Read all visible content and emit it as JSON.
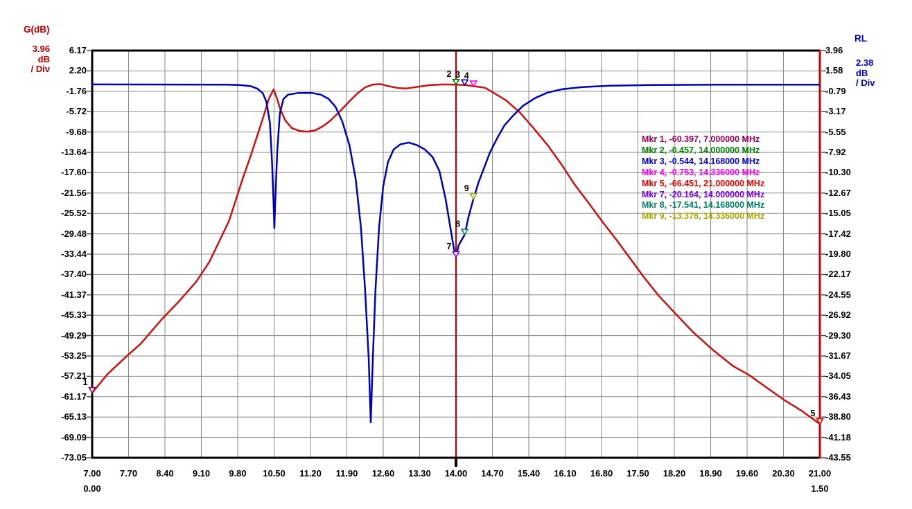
{
  "left_axis_header": {
    "label": "G(dB)",
    "scale_value": "3.96",
    "scale_unit": "dB",
    "scale_per": "/ Div",
    "color": "#c00000"
  },
  "right_axis_header": {
    "label": "RL",
    "scale_value": "2.38",
    "scale_unit": "dB",
    "scale_per": "/ Div",
    "color": "#0000cc"
  },
  "chart_data": {
    "type": "line",
    "title": "Filter gain and return loss vs frequency",
    "x_axis": {
      "unit": "MHz",
      "min": 7.0,
      "max": 21.0,
      "tick_labels": [
        "7.00",
        "7.70",
        "8.40",
        "9.10",
        "9.80",
        "10.50",
        "11.20",
        "11.90",
        "12.60",
        "13.30",
        "14.00",
        "14.70",
        "15.40",
        "16.10",
        "16.80",
        "17.50",
        "18.20",
        "18.90",
        "19.60",
        "20.30",
        "21.00"
      ],
      "secondary_left_label": "0.00",
      "secondary_right_label": "1.50"
    },
    "left_axis": {
      "name": "G(dB)",
      "top": 6.17,
      "per_div": 3.96,
      "divisions": 20,
      "tick_labels": [
        "6.17",
        "2.20",
        "-1.76",
        "-5.72",
        "-9.68",
        "-13.64",
        "-17.60",
        "-21.56",
        "-25.52",
        "-29.48",
        "-33.44",
        "-37.40",
        "-41.37",
        "-45.33",
        "-49.29",
        "-53.25",
        "-57.21",
        "-61.17",
        "-65.13",
        "-69.09",
        "-73.05"
      ]
    },
    "right_axis": {
      "name": "RL",
      "top": 3.96,
      "per_div": 2.38,
      "divisions": 20,
      "tick_labels": [
        "3.96",
        "1.58",
        "-0.79",
        "-3.17",
        "-5.55",
        "-7.92",
        "-10.30",
        "-12.67",
        "-15.05",
        "-17.42",
        "-19.80",
        "-22.17",
        "-24.55",
        "-26.92",
        "-29.30",
        "-31.67",
        "-34.05",
        "-36.43",
        "-38.80",
        "-41.18",
        "-43.55"
      ]
    },
    "grid_color": "#868686",
    "border_color": "#000000",
    "right_border_color": "#c00000",
    "tick_color": "#444444",
    "marker_line": {
      "freq_mhz": 14.0,
      "color": "#c00000"
    },
    "series": [
      {
        "name": "gain",
        "axis": "left",
        "color": "#cc1111",
        "points": [
          [
            7.0,
            -60.4
          ],
          [
            7.3,
            -56.7
          ],
          [
            7.67,
            -53.2
          ],
          [
            7.93,
            -50.9
          ],
          [
            8.33,
            -46.2
          ],
          [
            8.69,
            -42.4
          ],
          [
            9.0,
            -38.8
          ],
          [
            9.25,
            -35.0
          ],
          [
            9.45,
            -30.8
          ],
          [
            9.63,
            -27.0
          ],
          [
            9.76,
            -23.0
          ],
          [
            9.89,
            -18.9
          ],
          [
            10.03,
            -14.9
          ],
          [
            10.16,
            -10.9
          ],
          [
            10.29,
            -6.85
          ],
          [
            10.4,
            -3.2
          ],
          [
            10.49,
            -1.4
          ],
          [
            10.55,
            -3.0
          ],
          [
            10.62,
            -5.3
          ],
          [
            10.72,
            -7.5
          ],
          [
            10.84,
            -8.9
          ],
          [
            11.0,
            -9.5
          ],
          [
            11.15,
            -9.6
          ],
          [
            11.3,
            -9.3
          ],
          [
            11.45,
            -8.5
          ],
          [
            11.6,
            -7.3
          ],
          [
            11.78,
            -5.5
          ],
          [
            11.95,
            -3.7
          ],
          [
            12.1,
            -2.2
          ],
          [
            12.25,
            -1.0
          ],
          [
            12.4,
            -0.45
          ],
          [
            12.55,
            -0.35
          ],
          [
            12.7,
            -0.75
          ],
          [
            12.9,
            -1.15
          ],
          [
            13.05,
            -1.2
          ],
          [
            13.25,
            -0.9
          ],
          [
            13.5,
            -0.55
          ],
          [
            13.75,
            -0.42
          ],
          [
            14.0,
            -0.457
          ],
          [
            14.168,
            -0.544
          ],
          [
            14.336,
            -0.753
          ],
          [
            14.56,
            -1.08
          ],
          [
            14.7,
            -1.9
          ],
          [
            14.96,
            -3.5
          ],
          [
            15.23,
            -5.9
          ],
          [
            15.49,
            -8.9
          ],
          [
            15.76,
            -12.2
          ],
          [
            16.03,
            -16.0
          ],
          [
            16.29,
            -20.0
          ],
          [
            16.56,
            -23.6
          ],
          [
            16.83,
            -27.3
          ],
          [
            17.09,
            -30.7
          ],
          [
            17.36,
            -34.4
          ],
          [
            17.63,
            -38.1
          ],
          [
            17.89,
            -41.4
          ],
          [
            18.23,
            -45.1
          ],
          [
            18.56,
            -48.6
          ],
          [
            18.96,
            -52.2
          ],
          [
            19.33,
            -55.2
          ],
          [
            19.63,
            -56.9
          ],
          [
            19.99,
            -59.5
          ],
          [
            20.33,
            -61.9
          ],
          [
            20.65,
            -63.9
          ],
          [
            21.0,
            -66.451
          ]
        ]
      },
      {
        "name": "return_loss",
        "axis": "right",
        "color": "#0000b4",
        "points": [
          [
            7.0,
            0.0
          ],
          [
            9.6,
            -0.02
          ],
          [
            9.85,
            -0.08
          ],
          [
            10.05,
            -0.2
          ],
          [
            10.18,
            -0.5
          ],
          [
            10.28,
            -1.0
          ],
          [
            10.35,
            -2.0
          ],
          [
            10.42,
            -4.5
          ],
          [
            10.46,
            -9.0
          ],
          [
            10.49,
            -14.0
          ],
          [
            10.505,
            -16.8
          ],
          [
            10.52,
            -14.0
          ],
          [
            10.56,
            -7.9
          ],
          [
            10.61,
            -3.4
          ],
          [
            10.68,
            -1.7
          ],
          [
            10.77,
            -1.2
          ],
          [
            10.96,
            -1.0
          ],
          [
            11.23,
            -1.0
          ],
          [
            11.4,
            -1.2
          ],
          [
            11.55,
            -1.7
          ],
          [
            11.68,
            -2.6
          ],
          [
            11.81,
            -4.3
          ],
          [
            11.95,
            -7.1
          ],
          [
            12.07,
            -11.1
          ],
          [
            12.17,
            -16.7
          ],
          [
            12.25,
            -24.0
          ],
          [
            12.32,
            -32.0
          ],
          [
            12.36,
            -39.5
          ],
          [
            12.4,
            -32.0
          ],
          [
            12.45,
            -24.0
          ],
          [
            12.52,
            -16.7
          ],
          [
            12.6,
            -11.9
          ],
          [
            12.69,
            -9.1
          ],
          [
            12.8,
            -7.6
          ],
          [
            12.93,
            -7.0
          ],
          [
            13.09,
            -6.8
          ],
          [
            13.25,
            -7.1
          ],
          [
            13.4,
            -7.6
          ],
          [
            13.55,
            -8.5
          ],
          [
            13.68,
            -10.1
          ],
          [
            13.8,
            -13.4
          ],
          [
            13.89,
            -16.7
          ],
          [
            13.96,
            -19.2
          ],
          [
            14.0,
            -20.164
          ],
          [
            14.05,
            -18.8
          ],
          [
            14.168,
            -17.541
          ],
          [
            14.24,
            -15.5
          ],
          [
            14.336,
            -13.378
          ],
          [
            14.43,
            -11.5
          ],
          [
            14.53,
            -9.9
          ],
          [
            14.65,
            -8.0
          ],
          [
            14.79,
            -6.3
          ],
          [
            14.93,
            -4.8
          ],
          [
            15.09,
            -3.7
          ],
          [
            15.29,
            -2.5
          ],
          [
            15.52,
            -1.6
          ],
          [
            15.76,
            -0.95
          ],
          [
            16.05,
            -0.55
          ],
          [
            16.43,
            -0.31
          ],
          [
            16.96,
            -0.15
          ],
          [
            17.76,
            -0.07
          ],
          [
            19.0,
            -0.03
          ],
          [
            21.0,
            -0.02
          ]
        ]
      }
    ],
    "markers": [
      {
        "id": "1",
        "value": -60.397,
        "freq_mhz": 7.0,
        "axis": "left",
        "color": "#a00050"
      },
      {
        "id": "2",
        "value": -0.457,
        "freq_mhz": 14.0,
        "axis": "left",
        "color": "#008000"
      },
      {
        "id": "3",
        "value": -0.544,
        "freq_mhz": 14.168,
        "axis": "left",
        "color": "#0000ee"
      },
      {
        "id": "4",
        "value": -0.753,
        "freq_mhz": 14.336,
        "axis": "left",
        "color": "#ff00ff"
      },
      {
        "id": "5",
        "value": -66.451,
        "freq_mhz": 21.0,
        "axis": "left",
        "color": "#ee0000"
      },
      {
        "id": "7",
        "value": -20.164,
        "freq_mhz": 14.0,
        "axis": "right",
        "color": "#7700ee"
      },
      {
        "id": "8",
        "value": -17.541,
        "freq_mhz": 14.168,
        "axis": "right",
        "color": "#008066"
      },
      {
        "id": "9",
        "value": -13.378,
        "freq_mhz": 14.336,
        "axis": "right",
        "color": "#a8a800"
      }
    ]
  },
  "legend": {
    "items": [
      {
        "text": "Mkr 1, -60.397, 7.000000 MHz",
        "color": "#a00050"
      },
      {
        "text": "Mkr 2, -0.457, 14.000000 MHz",
        "color": "#008000"
      },
      {
        "text": "Mkr 3, -0.544, 14.168000 MHz",
        "color": "#0000ee"
      },
      {
        "text": "Mkr 4, -0.753, 14.336000 MHz",
        "color": "#ff00ff"
      },
      {
        "text": "Mkr 5, -66.451, 21.000000 MHz",
        "color": "#ee0000"
      },
      {
        "text": "Mkr 7, -20.164, 14.000000 MHz",
        "color": "#7700ee"
      },
      {
        "text": "Mkr 8, -17.541, 14.168000 MHz",
        "color": "#008066"
      },
      {
        "text": "Mkr 9, -13.378, 14.336000 MHz",
        "color": "#a8a800"
      }
    ]
  }
}
